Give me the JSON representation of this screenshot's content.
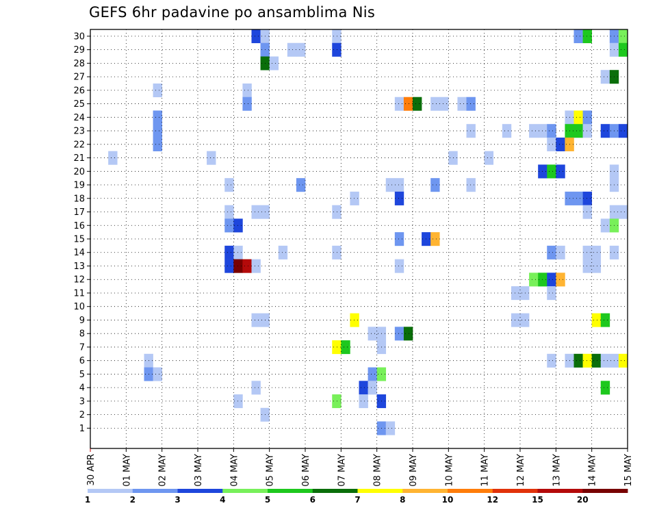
{
  "title": "GEFS 6hr padavine po ansamblima Nis",
  "chart_data": {
    "type": "heatmap",
    "title": "GEFS 6hr padavine po ansamblima Nis",
    "x_time_axis": {
      "start": "30 APR 00Z",
      "end": "15 MAY 00Z",
      "step_hours": 6,
      "columns": 60,
      "tick_labels": [
        "30 APR",
        "01 MAY",
        "02 MAY",
        "03 MAY",
        "04 MAY",
        "05 MAY",
        "06 MAY",
        "07 MAY",
        "08 MAY",
        "09 MAY",
        "10 MAY",
        "11 MAY",
        "12 MAY",
        "13 MAY",
        "14 MAY",
        "15 MAY"
      ]
    },
    "y_labels": [
      "1",
      "2",
      "3",
      "4",
      "5",
      "6",
      "7",
      "8",
      "9",
      "10",
      "11",
      "12",
      "13",
      "14",
      "15",
      "16",
      "17",
      "18",
      "19",
      "20",
      "21",
      "22",
      "23",
      "24",
      "25",
      "26",
      "27",
      "28",
      "29",
      "30"
    ],
    "grid": true,
    "colorbar": {
      "placement": "bottom",
      "colors": [
        "#b4c8f5",
        "#6e96f0",
        "#1e46dc",
        "#78f05a",
        "#1ec81e",
        "#0a6e0a",
        "#ffff00",
        "#ffb432",
        "#ff7d0a",
        "#e1320a",
        "#b40a0a",
        "#780000"
      ],
      "labels": [
        "1",
        "2",
        "3",
        "4",
        "5",
        "6",
        "7",
        "8",
        "10",
        "12",
        "15",
        "20"
      ]
    },
    "cells": [
      {
        "m": 30,
        "t": 18,
        "v": 3
      },
      {
        "m": 30,
        "t": 19,
        "v": 1
      },
      {
        "m": 30,
        "t": 27,
        "v": 1
      },
      {
        "m": 30,
        "t": 54,
        "v": 2
      },
      {
        "m": 30,
        "t": 55,
        "v": 5
      },
      {
        "m": 30,
        "t": 58,
        "v": 2
      },
      {
        "m": 30,
        "t": 59,
        "v": 4
      },
      {
        "m": 29,
        "t": 19,
        "v": 2
      },
      {
        "m": 29,
        "t": 22,
        "v": 1
      },
      {
        "m": 29,
        "t": 23,
        "v": 1
      },
      {
        "m": 29,
        "t": 27,
        "v": 3
      },
      {
        "m": 29,
        "t": 58,
        "v": 1
      },
      {
        "m": 29,
        "t": 59,
        "v": 5
      },
      {
        "m": 28,
        "t": 19,
        "v": 6
      },
      {
        "m": 28,
        "t": 20,
        "v": 1
      },
      {
        "m": 27,
        "t": 57,
        "v": 1
      },
      {
        "m": 27,
        "t": 58,
        "v": 6
      },
      {
        "m": 26,
        "t": 7,
        "v": 1
      },
      {
        "m": 26,
        "t": 17,
        "v": 1
      },
      {
        "m": 25,
        "t": 17,
        "v": 2
      },
      {
        "m": 25,
        "t": 34,
        "v": 1
      },
      {
        "m": 25,
        "t": 35,
        "v": 10
      },
      {
        "m": 25,
        "t": 36,
        "v": 6
      },
      {
        "m": 25,
        "t": 38,
        "v": 1
      },
      {
        "m": 25,
        "t": 39,
        "v": 1
      },
      {
        "m": 25,
        "t": 41,
        "v": 1
      },
      {
        "m": 25,
        "t": 42,
        "v": 2
      },
      {
        "m": 24,
        "t": 7,
        "v": 2
      },
      {
        "m": 24,
        "t": 53,
        "v": 1
      },
      {
        "m": 24,
        "t": 54,
        "v": 7
      },
      {
        "m": 24,
        "t": 55,
        "v": 2
      },
      {
        "m": 23,
        "t": 7,
        "v": 2
      },
      {
        "m": 23,
        "t": 42,
        "v": 1
      },
      {
        "m": 23,
        "t": 46,
        "v": 1
      },
      {
        "m": 23,
        "t": 49,
        "v": 1
      },
      {
        "m": 23,
        "t": 50,
        "v": 1
      },
      {
        "m": 23,
        "t": 51,
        "v": 2
      },
      {
        "m": 23,
        "t": 53,
        "v": 5
      },
      {
        "m": 23,
        "t": 54,
        "v": 5
      },
      {
        "m": 23,
        "t": 55,
        "v": 1
      },
      {
        "m": 23,
        "t": 57,
        "v": 3
      },
      {
        "m": 23,
        "t": 58,
        "v": 2
      },
      {
        "m": 23,
        "t": 59,
        "v": 3
      },
      {
        "m": 22,
        "t": 7,
        "v": 2
      },
      {
        "m": 22,
        "t": 51,
        "v": 1
      },
      {
        "m": 22,
        "t": 52,
        "v": 3
      },
      {
        "m": 22,
        "t": 53,
        "v": 8
      },
      {
        "m": 21,
        "t": 2,
        "v": 1
      },
      {
        "m": 21,
        "t": 13,
        "v": 1
      },
      {
        "m": 21,
        "t": 40,
        "v": 1
      },
      {
        "m": 21,
        "t": 44,
        "v": 1
      },
      {
        "m": 20,
        "t": 50,
        "v": 3
      },
      {
        "m": 20,
        "t": 51,
        "v": 5
      },
      {
        "m": 20,
        "t": 52,
        "v": 3
      },
      {
        "m": 20,
        "t": 58,
        "v": 1
      },
      {
        "m": 19,
        "t": 15,
        "v": 1
      },
      {
        "m": 19,
        "t": 23,
        "v": 2
      },
      {
        "m": 19,
        "t": 33,
        "v": 1
      },
      {
        "m": 19,
        "t": 34,
        "v": 1
      },
      {
        "m": 19,
        "t": 38,
        "v": 2
      },
      {
        "m": 19,
        "t": 42,
        "v": 1
      },
      {
        "m": 19,
        "t": 58,
        "v": 1
      },
      {
        "m": 18,
        "t": 29,
        "v": 1
      },
      {
        "m": 18,
        "t": 34,
        "v": 3
      },
      {
        "m": 18,
        "t": 53,
        "v": 2
      },
      {
        "m": 18,
        "t": 54,
        "v": 2
      },
      {
        "m": 18,
        "t": 55,
        "v": 3
      },
      {
        "m": 17,
        "t": 15,
        "v": 1
      },
      {
        "m": 17,
        "t": 18,
        "v": 1
      },
      {
        "m": 17,
        "t": 19,
        "v": 1
      },
      {
        "m": 17,
        "t": 27,
        "v": 1
      },
      {
        "m": 17,
        "t": 55,
        "v": 1
      },
      {
        "m": 17,
        "t": 58,
        "v": 1
      },
      {
        "m": 17,
        "t": 59,
        "v": 1
      },
      {
        "m": 16,
        "t": 15,
        "v": 2
      },
      {
        "m": 16,
        "t": 16,
        "v": 3
      },
      {
        "m": 16,
        "t": 57,
        "v": 1
      },
      {
        "m": 16,
        "t": 58,
        "v": 4
      },
      {
        "m": 15,
        "t": 34,
        "v": 2
      },
      {
        "m": 15,
        "t": 37,
        "v": 3
      },
      {
        "m": 15,
        "t": 38,
        "v": 8
      },
      {
        "m": 14,
        "t": 15,
        "v": 3
      },
      {
        "m": 14,
        "t": 16,
        "v": 1
      },
      {
        "m": 14,
        "t": 21,
        "v": 1
      },
      {
        "m": 14,
        "t": 27,
        "v": 1
      },
      {
        "m": 14,
        "t": 51,
        "v": 2
      },
      {
        "m": 14,
        "t": 52,
        "v": 1
      },
      {
        "m": 14,
        "t": 55,
        "v": 1
      },
      {
        "m": 14,
        "t": 56,
        "v": 1
      },
      {
        "m": 14,
        "t": 58,
        "v": 1
      },
      {
        "m": 13,
        "t": 15,
        "v": 3
      },
      {
        "m": 13,
        "t": 16,
        "v": 20
      },
      {
        "m": 13,
        "t": 17,
        "v": 15
      },
      {
        "m": 13,
        "t": 18,
        "v": 1
      },
      {
        "m": 13,
        "t": 34,
        "v": 1
      },
      {
        "m": 13,
        "t": 55,
        "v": 1
      },
      {
        "m": 13,
        "t": 56,
        "v": 1
      },
      {
        "m": 12,
        "t": 49,
        "v": 4
      },
      {
        "m": 12,
        "t": 50,
        "v": 5
      },
      {
        "m": 12,
        "t": 51,
        "v": 3
      },
      {
        "m": 12,
        "t": 52,
        "v": 8
      },
      {
        "m": 11,
        "t": 47,
        "v": 1
      },
      {
        "m": 11,
        "t": 48,
        "v": 1
      },
      {
        "m": 11,
        "t": 51,
        "v": 1
      },
      {
        "m": 9,
        "t": 18,
        "v": 1
      },
      {
        "m": 9,
        "t": 19,
        "v": 1
      },
      {
        "m": 9,
        "t": 29,
        "v": 7
      },
      {
        "m": 9,
        "t": 47,
        "v": 1
      },
      {
        "m": 9,
        "t": 48,
        "v": 1
      },
      {
        "m": 9,
        "t": 56,
        "v": 7
      },
      {
        "m": 9,
        "t": 57,
        "v": 5
      },
      {
        "m": 8,
        "t": 31,
        "v": 1
      },
      {
        "m": 8,
        "t": 32,
        "v": 1
      },
      {
        "m": 8,
        "t": 34,
        "v": 2
      },
      {
        "m": 8,
        "t": 35,
        "v": 6
      },
      {
        "m": 7,
        "t": 27,
        "v": 7
      },
      {
        "m": 7,
        "t": 28,
        "v": 5
      },
      {
        "m": 7,
        "t": 32,
        "v": 1
      },
      {
        "m": 6,
        "t": 6,
        "v": 1
      },
      {
        "m": 6,
        "t": 51,
        "v": 1
      },
      {
        "m": 6,
        "t": 53,
        "v": 1
      },
      {
        "m": 6,
        "t": 54,
        "v": 6
      },
      {
        "m": 6,
        "t": 55,
        "v": 7
      },
      {
        "m": 6,
        "t": 56,
        "v": 6
      },
      {
        "m": 6,
        "t": 57,
        "v": 1
      },
      {
        "m": 6,
        "t": 58,
        "v": 1
      },
      {
        "m": 6,
        "t": 59,
        "v": 7
      },
      {
        "m": 5,
        "t": 6,
        "v": 2
      },
      {
        "m": 5,
        "t": 7,
        "v": 1
      },
      {
        "m": 5,
        "t": 31,
        "v": 2
      },
      {
        "m": 5,
        "t": 32,
        "v": 4
      },
      {
        "m": 4,
        "t": 18,
        "v": 1
      },
      {
        "m": 4,
        "t": 30,
        "v": 3
      },
      {
        "m": 4,
        "t": 31,
        "v": 1
      },
      {
        "m": 4,
        "t": 57,
        "v": 5
      },
      {
        "m": 3,
        "t": 16,
        "v": 1
      },
      {
        "m": 3,
        "t": 27,
        "v": 4
      },
      {
        "m": 3,
        "t": 30,
        "v": 1
      },
      {
        "m": 3,
        "t": 32,
        "v": 3
      },
      {
        "m": 2,
        "t": 19,
        "v": 1
      },
      {
        "m": 1,
        "t": 32,
        "v": 2
      },
      {
        "m": 1,
        "t": 33,
        "v": 1
      }
    ]
  }
}
